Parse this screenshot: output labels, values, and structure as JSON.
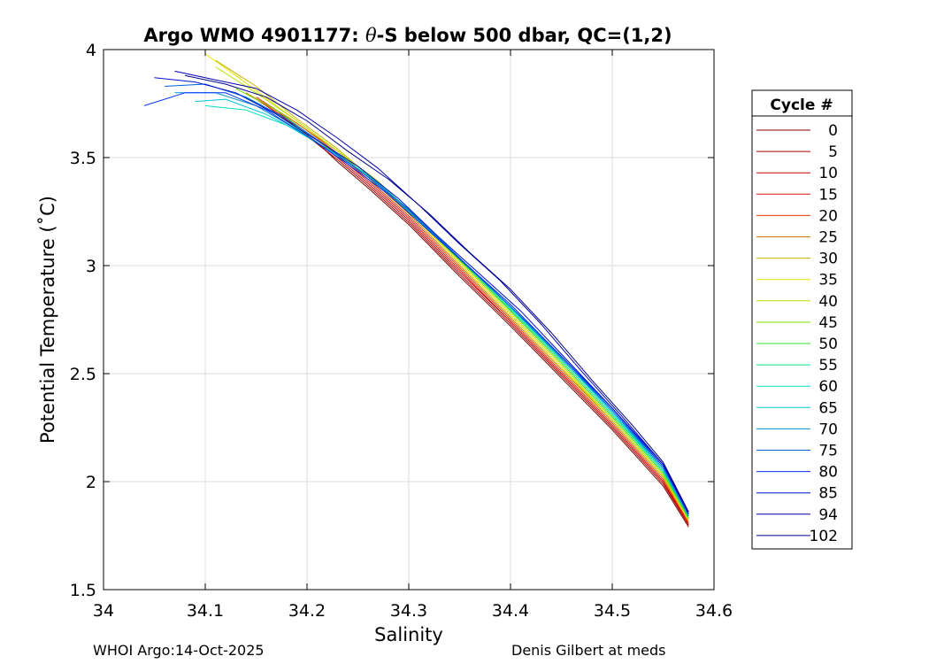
{
  "chart_data": {
    "type": "line",
    "title": "Argo WMO 4901177: θ-S below 500 dbar,  QC=(1,2)",
    "title_parts": {
      "prefix": "Argo WMO 4901177: ",
      "theta": "θ",
      "suffix": "-S below 500 dbar,  QC=(1,2)"
    },
    "xlabel": "Salinity",
    "ylabel": "Potential Temperature (˚C)",
    "xlim": [
      34,
      34.6
    ],
    "ylim": [
      1.5,
      4
    ],
    "xticks": [
      34,
      34.1,
      34.2,
      34.3,
      34.4,
      34.5,
      34.6
    ],
    "xtick_labels": [
      "34",
      "34.1",
      "34.2",
      "34.3",
      "34.4",
      "34.5",
      "34.6"
    ],
    "yticks": [
      1.5,
      2,
      2.5,
      3,
      3.5,
      4
    ],
    "ytick_labels": [
      "1.5",
      "2",
      "2.5",
      "3",
      "3.5",
      "4"
    ],
    "grid": true,
    "legend": {
      "title": "Cycle #",
      "placement": "outside-right",
      "entries": [
        {
          "label": "0",
          "color": "#800000"
        },
        {
          "label": "5",
          "color": "#a00000"
        },
        {
          "label": "10",
          "color": "#cc0000"
        },
        {
          "label": "15",
          "color": "#e01010"
        },
        {
          "label": "20",
          "color": "#e03a00"
        },
        {
          "label": "25",
          "color": "#cc7a00"
        },
        {
          "label": "30",
          "color": "#c8b000"
        },
        {
          "label": "35",
          "color": "#e6e600"
        },
        {
          "label": "40",
          "color": "#b8e000"
        },
        {
          "label": "45",
          "color": "#70e000"
        },
        {
          "label": "50",
          "color": "#30e030"
        },
        {
          "label": "55",
          "color": "#00e080"
        },
        {
          "label": "60",
          "color": "#00e0c0"
        },
        {
          "label": "65",
          "color": "#00c8d8"
        },
        {
          "label": "70",
          "color": "#0090c8"
        },
        {
          "label": "75",
          "color": "#0060e0"
        },
        {
          "label": "80",
          "color": "#0030ff"
        },
        {
          "label": "85",
          "color": "#0010d0"
        },
        {
          "label": "94",
          "color": "#0000b0"
        },
        {
          "label": "102",
          "color": "#00008a"
        }
      ]
    },
    "series": [
      {
        "name": "0",
        "color": "#800000",
        "x": [
          34.19,
          34.21,
          34.23,
          34.26,
          34.3,
          34.35,
          34.4,
          34.45,
          34.5,
          34.55,
          34.575
        ],
        "y": [
          3.64,
          3.57,
          3.48,
          3.36,
          3.19,
          2.95,
          2.72,
          2.48,
          2.24,
          1.98,
          1.79
        ]
      },
      {
        "name": "5",
        "color": "#a00000",
        "x": [
          34.17,
          34.2,
          34.23,
          34.26,
          34.3,
          34.35,
          34.4,
          34.45,
          34.5,
          34.55,
          34.575
        ],
        "y": [
          3.72,
          3.6,
          3.49,
          3.37,
          3.2,
          2.96,
          2.73,
          2.49,
          2.25,
          1.99,
          1.8
        ]
      },
      {
        "name": "10",
        "color": "#cc0000",
        "x": [
          34.16,
          34.19,
          34.23,
          34.26,
          34.3,
          34.35,
          34.4,
          34.45,
          34.5,
          34.55,
          34.575
        ],
        "y": [
          3.74,
          3.64,
          3.5,
          3.38,
          3.21,
          2.97,
          2.74,
          2.5,
          2.26,
          2.0,
          1.8
        ]
      },
      {
        "name": "15",
        "color": "#e01010",
        "x": [
          34.15,
          34.19,
          34.23,
          34.26,
          34.3,
          34.35,
          34.4,
          34.45,
          34.5,
          34.55,
          34.575
        ],
        "y": [
          3.77,
          3.65,
          3.51,
          3.39,
          3.22,
          2.98,
          2.74,
          2.5,
          2.26,
          2.0,
          1.81
        ]
      },
      {
        "name": "20",
        "color": "#e03a00",
        "x": [
          34.15,
          34.19,
          34.23,
          34.26,
          34.3,
          34.35,
          34.4,
          34.45,
          34.5,
          34.55,
          34.575
        ],
        "y": [
          3.78,
          3.66,
          3.52,
          3.4,
          3.23,
          2.99,
          2.75,
          2.51,
          2.27,
          2.01,
          1.81
        ]
      },
      {
        "name": "25",
        "color": "#cc7a00",
        "x": [
          34.14,
          34.18,
          34.23,
          34.26,
          34.3,
          34.35,
          34.4,
          34.45,
          34.5,
          34.55,
          34.575
        ],
        "y": [
          3.8,
          3.69,
          3.53,
          3.41,
          3.24,
          3.0,
          2.76,
          2.52,
          2.28,
          2.02,
          1.82
        ]
      },
      {
        "name": "30",
        "color": "#c8b000",
        "x": [
          34.11,
          34.15,
          34.19,
          34.23,
          34.26,
          34.3,
          34.35,
          34.4,
          34.45,
          34.5,
          34.55,
          34.575
        ],
        "y": [
          3.95,
          3.83,
          3.68,
          3.54,
          3.42,
          3.25,
          3.01,
          2.77,
          2.53,
          2.28,
          2.02,
          1.82
        ]
      },
      {
        "name": "35",
        "color": "#e6e600",
        "x": [
          34.1,
          34.13,
          34.17,
          34.21,
          34.25,
          34.3,
          34.35,
          34.4,
          34.45,
          34.5,
          34.55,
          34.575
        ],
        "y": [
          3.98,
          3.88,
          3.74,
          3.6,
          3.46,
          3.25,
          3.01,
          2.77,
          2.53,
          2.29,
          2.03,
          1.82
        ]
      },
      {
        "name": "40",
        "color": "#b8e000",
        "x": [
          34.11,
          34.15,
          34.19,
          34.23,
          34.27,
          34.31,
          34.35,
          34.4,
          34.45,
          34.5,
          34.55,
          34.575
        ],
        "y": [
          3.92,
          3.8,
          3.67,
          3.53,
          3.39,
          3.21,
          3.02,
          2.78,
          2.54,
          2.29,
          2.03,
          1.83
        ]
      },
      {
        "name": "45",
        "color": "#70e000",
        "x": [
          34.13,
          34.17,
          34.21,
          34.24,
          34.28,
          34.32,
          34.36,
          34.4,
          34.45,
          34.5,
          34.55,
          34.575
        ],
        "y": [
          3.82,
          3.72,
          3.58,
          3.48,
          3.34,
          3.16,
          2.98,
          2.79,
          2.55,
          2.3,
          2.04,
          1.83
        ]
      },
      {
        "name": "50",
        "color": "#30e030",
        "x": [
          34.14,
          34.18,
          34.22,
          34.25,
          34.28,
          34.32,
          34.36,
          34.4,
          34.45,
          34.5,
          34.55,
          34.575
        ],
        "y": [
          3.78,
          3.68,
          3.55,
          3.45,
          3.34,
          3.17,
          2.98,
          2.79,
          2.55,
          2.3,
          2.04,
          1.83
        ]
      },
      {
        "name": "55",
        "color": "#00e080",
        "x": [
          34.13,
          34.17,
          34.21,
          34.25,
          34.29,
          34.33,
          34.37,
          34.41,
          34.45,
          34.5,
          34.55,
          34.575
        ],
        "y": [
          3.8,
          3.7,
          3.57,
          3.45,
          3.3,
          3.12,
          2.94,
          2.75,
          2.56,
          2.31,
          2.05,
          1.84
        ]
      },
      {
        "name": "60",
        "color": "#00e0c0",
        "x": [
          34.1,
          34.14,
          34.18,
          34.22,
          34.26,
          34.3,
          34.34,
          34.38,
          34.42,
          34.46,
          34.5,
          34.55,
          34.575
        ],
        "y": [
          3.74,
          3.72,
          3.65,
          3.54,
          3.42,
          3.26,
          3.08,
          2.9,
          2.71,
          2.52,
          2.32,
          2.05,
          1.84
        ]
      },
      {
        "name": "65",
        "color": "#00c8d8",
        "x": [
          34.09,
          34.12,
          34.16,
          34.2,
          34.24,
          34.28,
          34.32,
          34.36,
          34.4,
          34.45,
          34.5,
          34.55,
          34.575
        ],
        "y": [
          3.76,
          3.77,
          3.7,
          3.6,
          3.48,
          3.34,
          3.17,
          2.99,
          2.81,
          2.57,
          2.32,
          2.06,
          1.84
        ]
      },
      {
        "name": "70",
        "color": "#0090c8",
        "x": [
          34.07,
          34.11,
          34.15,
          34.19,
          34.23,
          34.27,
          34.31,
          34.35,
          34.4,
          34.45,
          34.5,
          34.55,
          34.575
        ],
        "y": [
          3.8,
          3.8,
          3.74,
          3.63,
          3.51,
          3.38,
          3.21,
          3.03,
          2.81,
          2.57,
          2.33,
          2.06,
          1.84
        ]
      },
      {
        "name": "75",
        "color": "#0060e0",
        "x": [
          34.06,
          34.1,
          34.14,
          34.18,
          34.22,
          34.26,
          34.3,
          34.34,
          34.38,
          34.42,
          34.46,
          34.5,
          34.55,
          34.575
        ],
        "y": [
          3.83,
          3.84,
          3.78,
          3.68,
          3.55,
          3.41,
          3.26,
          3.08,
          2.9,
          2.72,
          2.53,
          2.33,
          2.07,
          1.85
        ]
      },
      {
        "name": "80",
        "color": "#0030ff",
        "x": [
          34.04,
          34.08,
          34.12,
          34.16,
          34.2,
          34.24,
          34.28,
          34.32,
          34.36,
          34.4,
          34.45,
          34.5,
          34.55,
          34.575
        ],
        "y": [
          3.74,
          3.8,
          3.8,
          3.72,
          3.6,
          3.47,
          3.33,
          3.16,
          2.99,
          2.82,
          2.58,
          2.34,
          2.07,
          1.85
        ]
      },
      {
        "name": "85",
        "color": "#0010d0",
        "x": [
          34.05,
          34.09,
          34.13,
          34.17,
          34.21,
          34.25,
          34.29,
          34.33,
          34.37,
          34.41,
          34.45,
          34.5,
          34.55,
          34.575
        ],
        "y": [
          3.87,
          3.85,
          3.8,
          3.7,
          3.58,
          3.46,
          3.31,
          3.13,
          2.96,
          2.79,
          2.59,
          2.34,
          2.08,
          1.85
        ]
      },
      {
        "name": "94",
        "color": "#0000b0",
        "x": [
          34.07,
          34.11,
          34.15,
          34.19,
          34.23,
          34.27,
          34.31,
          34.35,
          34.39,
          34.43,
          34.47,
          34.51,
          34.55,
          34.575
        ],
        "y": [
          3.9,
          3.86,
          3.82,
          3.72,
          3.59,
          3.45,
          3.28,
          3.1,
          2.93,
          2.73,
          2.51,
          2.3,
          2.08,
          1.86
        ]
      },
      {
        "name": "102",
        "color": "#00008a",
        "x": [
          34.08,
          34.12,
          34.16,
          34.2,
          34.24,
          34.28,
          34.32,
          34.36,
          34.4,
          34.44,
          34.48,
          34.52,
          34.55,
          34.575
        ],
        "y": [
          3.88,
          3.84,
          3.78,
          3.67,
          3.53,
          3.4,
          3.24,
          3.06,
          2.89,
          2.69,
          2.47,
          2.26,
          2.09,
          1.86
        ]
      }
    ]
  },
  "footer": {
    "left": "WHOI Argo:14-Oct-2025",
    "right": "Denis Gilbert at meds"
  }
}
